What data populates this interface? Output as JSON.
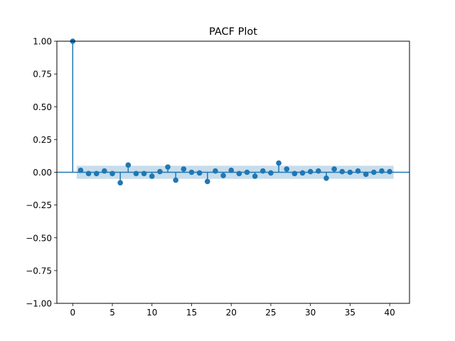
{
  "chart_data": {
    "type": "stem",
    "title": "PACF Plot",
    "xlabel": "",
    "ylabel": "",
    "xlim": [
      -2,
      42.5
    ],
    "ylim": [
      -1.0,
      1.0
    ],
    "x_ticks": [
      0,
      5,
      10,
      15,
      20,
      25,
      30,
      35,
      40
    ],
    "x_tick_labels": [
      "0",
      "5",
      "10",
      "15",
      "20",
      "25",
      "30",
      "35",
      "40"
    ],
    "y_ticks": [
      1.0,
      0.75,
      0.5,
      0.25,
      0.0,
      -0.25,
      -0.5,
      -0.75,
      -1.0
    ],
    "y_tick_labels": [
      "1.00",
      "0.75",
      "0.50",
      "0.25",
      "0.00",
      "−0.25",
      "−0.50",
      "−0.75",
      "−1.00"
    ],
    "grid": false,
    "confidence_band": {
      "lower": -0.05,
      "upper": 0.05,
      "x_range": [
        0.5,
        40.5
      ]
    },
    "lags": [
      0,
      1,
      2,
      3,
      4,
      5,
      6,
      7,
      8,
      9,
      10,
      11,
      12,
      13,
      14,
      15,
      16,
      17,
      18,
      19,
      20,
      21,
      22,
      23,
      24,
      25,
      26,
      27,
      28,
      29,
      30,
      31,
      32,
      33,
      34,
      35,
      36,
      37,
      38,
      39,
      40
    ],
    "values": [
      1.0,
      0.015,
      -0.01,
      -0.01,
      0.01,
      -0.01,
      -0.08,
      0.055,
      -0.01,
      -0.01,
      -0.03,
      0.005,
      0.04,
      -0.06,
      0.025,
      0.0,
      -0.005,
      -0.07,
      0.01,
      -0.025,
      0.015,
      -0.01,
      0.0,
      -0.03,
      0.01,
      -0.005,
      0.07,
      0.025,
      -0.01,
      -0.005,
      0.005,
      0.01,
      -0.045,
      0.025,
      0.005,
      0.0,
      0.01,
      -0.015,
      0.0,
      0.01,
      0.005
    ],
    "colors": {
      "marker": "#1f77b4",
      "band": "#1f77b4",
      "axis": "#000000"
    }
  }
}
